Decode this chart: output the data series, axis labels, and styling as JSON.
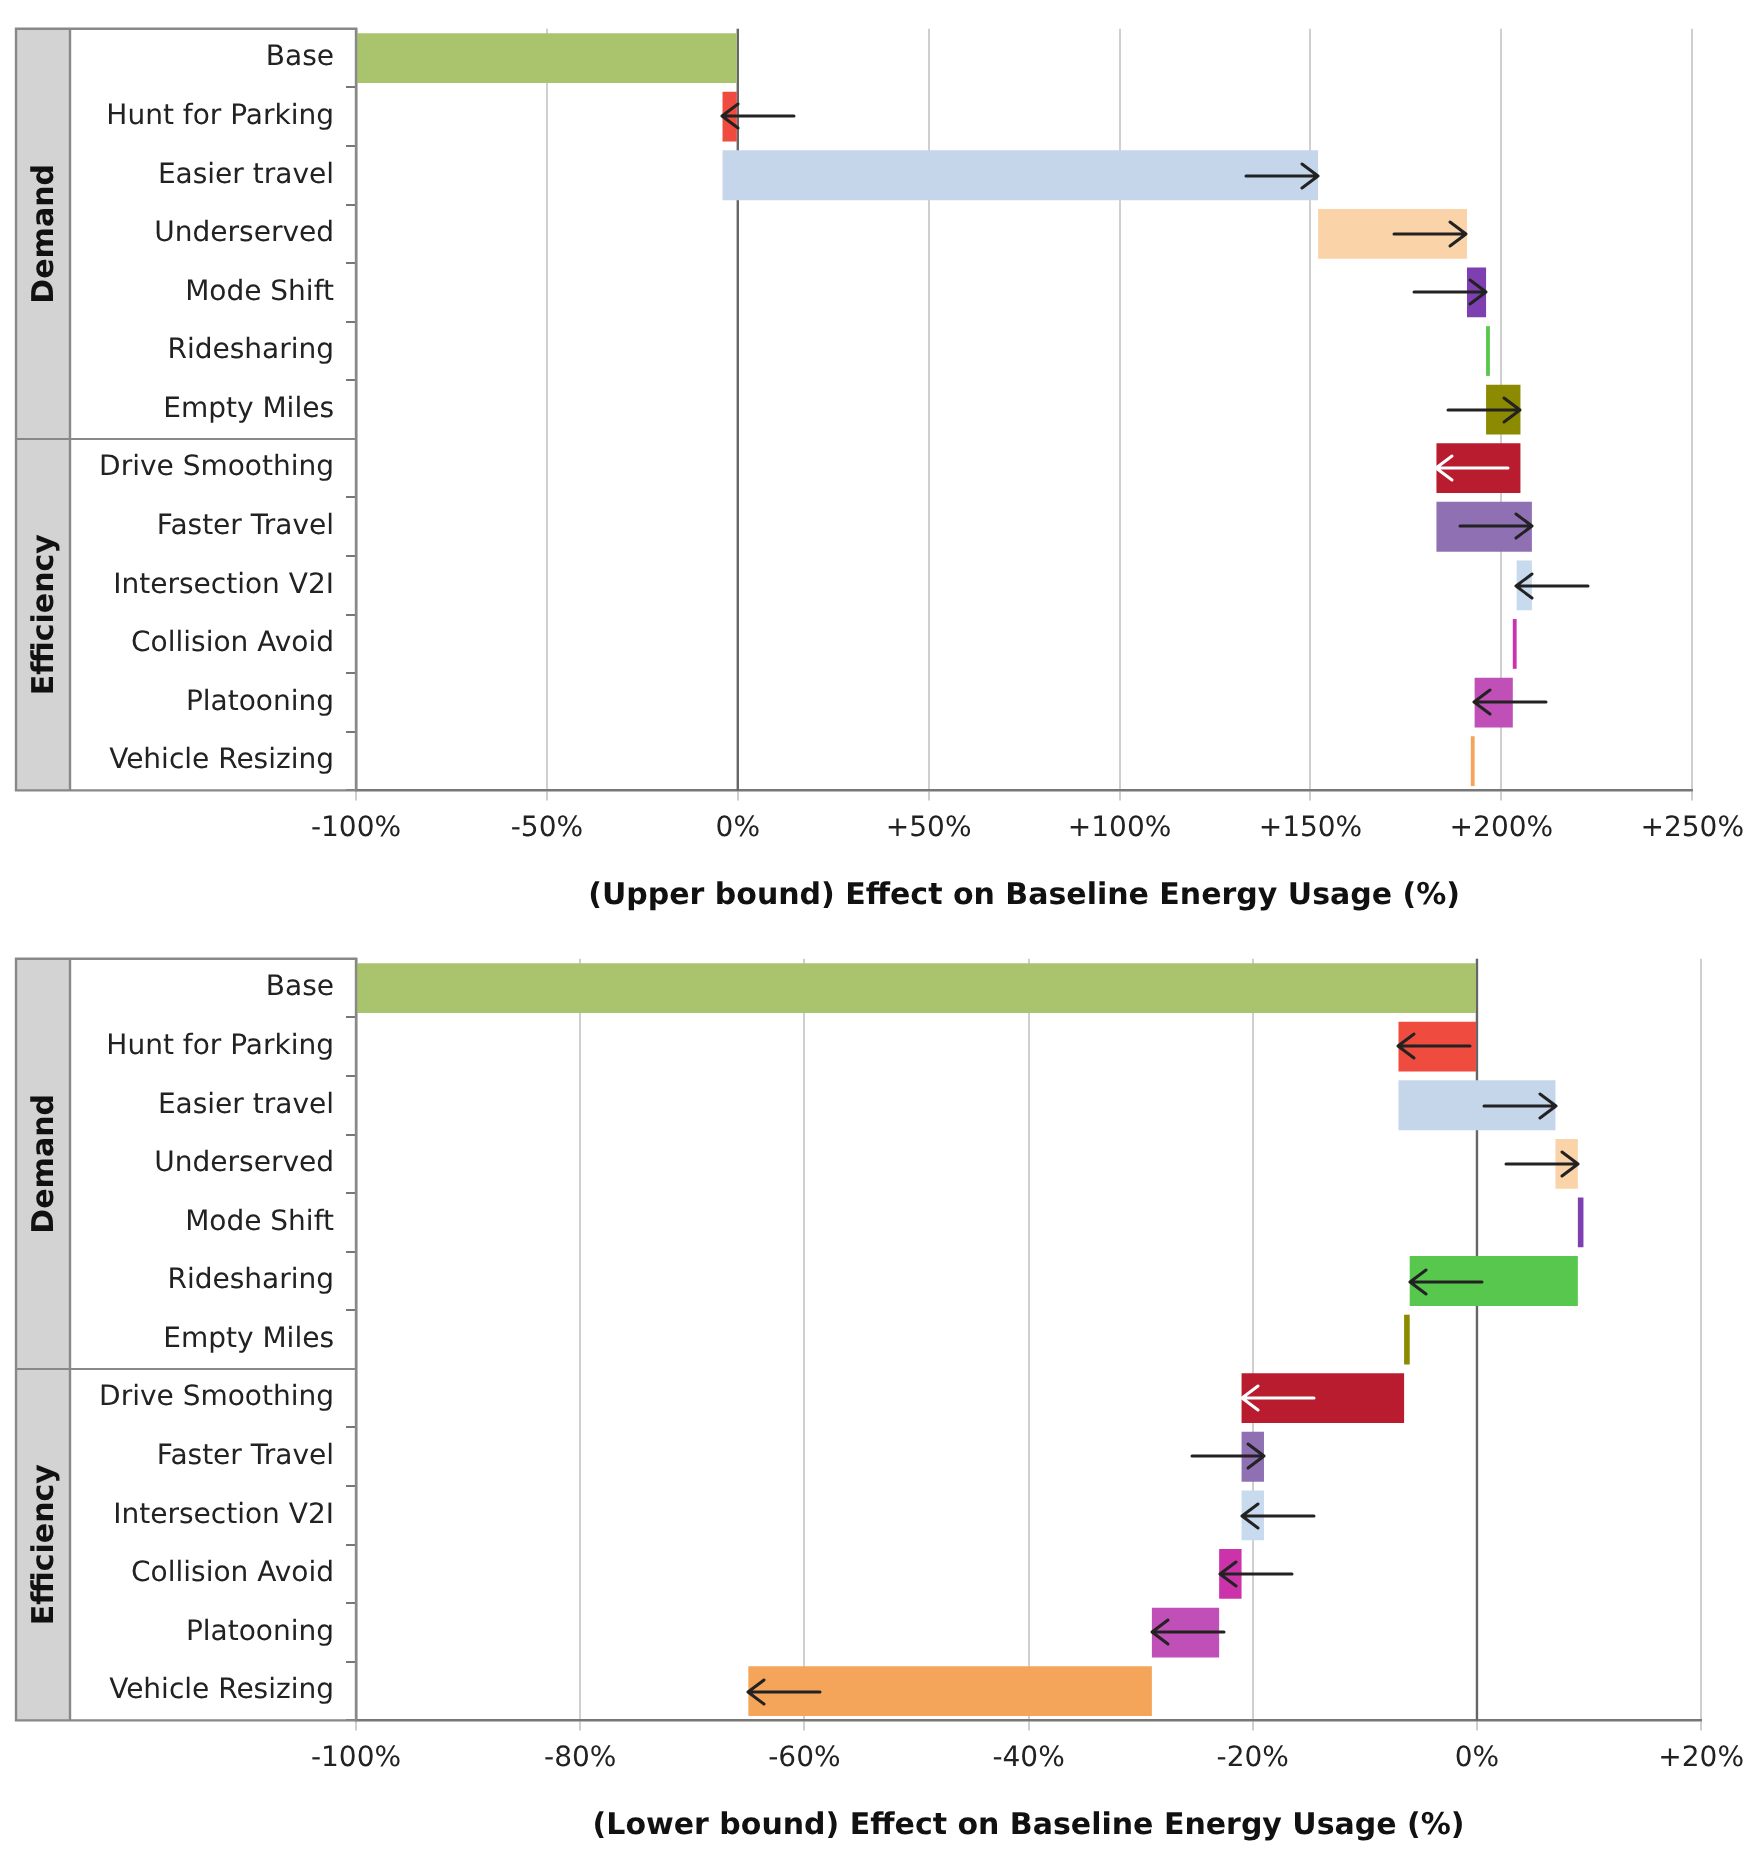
{
  "chart_data": [
    {
      "type": "bar",
      "orientation": "horizontal",
      "xlabel": "(Upper bound) Effect on Baseline Energy Usage (%)",
      "categories": [
        "Base",
        "Hunt for Parking",
        "Easier travel",
        "Underserved",
        "Mode Shift",
        "Ridesharing",
        "Empty Miles",
        "Drive Smoothing",
        "Faster Travel",
        "Intersection V2I",
        "Collision Avoid",
        "Platooning",
        "Vehicle Resizing"
      ],
      "base": [
        -100,
        0,
        -4,
        152,
        191,
        196,
        196,
        205,
        183,
        208,
        204,
        203,
        193
      ],
      "values": [
        100,
        -4,
        156,
        39,
        5,
        1,
        9,
        -22,
        25,
        -4,
        -1,
        -10,
        -1
      ],
      "colors": [
        "#a9c46c",
        "#ef4b3f",
        "#c5d6ea",
        "#fad3a9",
        "#7e3fb0",
        "#57c84d",
        "#8b8a00",
        "#b81c2e",
        "#8f70b3",
        "#c8daee",
        "#cc33aa",
        "#c050b8",
        "#f5a55a"
      ],
      "annotations": [
        "Demand",
        "Efficiency"
      ],
      "xlim": [
        -100,
        250
      ],
      "xticks": [
        {
          "value": -100,
          "label": "-100%"
        },
        {
          "value": -50,
          "label": "-50%"
        },
        {
          "value": 0,
          "label": "0%"
        },
        {
          "value": 50,
          "label": "+50%"
        },
        {
          "value": 100,
          "label": "+100%"
        },
        {
          "value": 150,
          "label": "+150%"
        },
        {
          "value": 200,
          "label": "+200%"
        },
        {
          "value": 250,
          "label": "+250%"
        }
      ],
      "ref_lines": [
        {
          "axis": "x",
          "value": 0
        }
      ],
      "grid": "x",
      "legend": false
    },
    {
      "type": "bar",
      "orientation": "horizontal",
      "xlabel": "(Lower bound) Effect on Baseline Energy Usage (%)",
      "categories": [
        "Base",
        "Hunt for Parking",
        "Easier travel",
        "Underserved",
        "Mode Shift",
        "Ridesharing",
        "Empty Miles",
        "Drive Smoothing",
        "Faster Travel",
        "Intersection V2I",
        "Collision Avoid",
        "Platooning",
        "Vehicle Resizing"
      ],
      "base": [
        -100,
        0,
        -7,
        7,
        9,
        9,
        -6,
        -6.5,
        -21,
        -19,
        -21,
        -23,
        -29
      ],
      "values": [
        100,
        -7,
        14,
        2,
        0.5,
        -15,
        -0.5,
        -14.5,
        2,
        -2,
        -2,
        -6,
        -36
      ],
      "colors": [
        "#a9c46c",
        "#ef4b3f",
        "#c5d6ea",
        "#fad3a9",
        "#7e3fb0",
        "#57c84d",
        "#8b8a00",
        "#b81c2e",
        "#8f70b3",
        "#c8daee",
        "#cc33aa",
        "#c050b8",
        "#f5a55a"
      ],
      "annotations": [
        "Demand",
        "Efficiency"
      ],
      "xlim": [
        -100,
        20
      ],
      "xticks": [
        {
          "value": -100,
          "label": "-100%"
        },
        {
          "value": -80,
          "label": "-80%"
        },
        {
          "value": -60,
          "label": "-60%"
        },
        {
          "value": -40,
          "label": "-40%"
        },
        {
          "value": -20,
          "label": "-20%"
        },
        {
          "value": 0,
          "label": "0%"
        },
        {
          "value": 20,
          "label": "+20%"
        }
      ],
      "ref_lines": [
        {
          "axis": "x",
          "value": 0
        }
      ],
      "grid": "x",
      "legend": false
    }
  ]
}
